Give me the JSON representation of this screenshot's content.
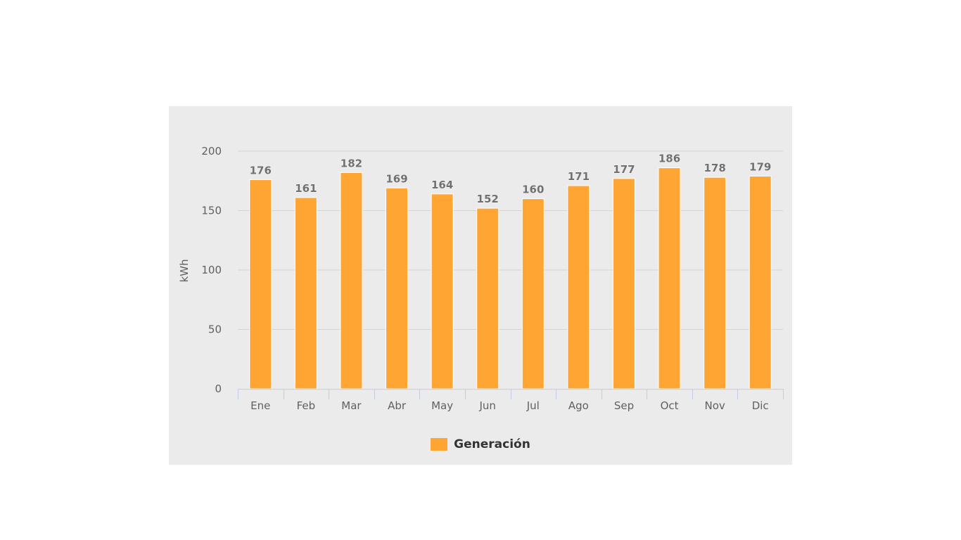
{
  "chart_data": {
    "type": "bar",
    "categories": [
      "Ene",
      "Feb",
      "Mar",
      "Abr",
      "May",
      "Jun",
      "Jul",
      "Ago",
      "Sep",
      "Oct",
      "Nov",
      "Dic"
    ],
    "series": [
      {
        "name": "Generación",
        "values": [
          176,
          161,
          182,
          169,
          164,
          152,
          160,
          171,
          177,
          186,
          178,
          179
        ],
        "color": "#ffa534"
      }
    ],
    "ylabel": "kWh",
    "ylim": [
      0,
      200
    ],
    "yticks": [
      "0",
      "50",
      "100",
      "150",
      "200"
    ],
    "grid": true,
    "legend_position": "bottom-center",
    "data_labels": true
  },
  "colors": {
    "panel_background": "#ebebeb",
    "bar": "#ffa534",
    "gridline": "#d4d4d4",
    "axis": "#c0cee0",
    "tick_text": "#606060",
    "data_label": "#707070"
  }
}
